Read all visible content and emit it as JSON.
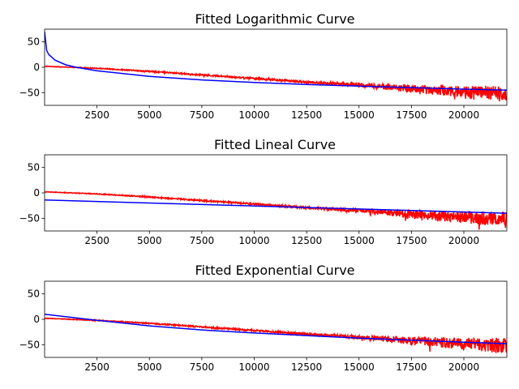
{
  "colors": {
    "observed": "#ff0000",
    "fitted": "#0000ff",
    "axes": "#000000",
    "background": "#ffffff"
  },
  "chart_data": [
    {
      "type": "line",
      "title": "Fitted Logarithmic Curve",
      "xlabel": "",
      "ylabel": "",
      "xlim": [
        1,
        22050
      ],
      "ylim": [
        -75,
        75
      ],
      "xticks": [
        2500,
        5000,
        7500,
        10000,
        12500,
        15000,
        17500,
        20000
      ],
      "yticks": [
        50,
        0,
        -50
      ],
      "grid": false,
      "legend": "none",
      "series": [
        {
          "color": "#ff0000",
          "style": "noisy",
          "x": [
            1,
            2500,
            5000,
            7500,
            10000,
            12500,
            15000,
            17500,
            20000,
            22050
          ],
          "y": [
            2,
            -2,
            -8,
            -15,
            -22,
            -29,
            -35,
            -42,
            -48,
            -52
          ],
          "noise_envelope": {
            "x": [
              1,
              12500,
              15000,
              17500,
              20000,
              22050
            ],
            "amp": [
              0.5,
              2,
              4,
              8,
              12,
              15
            ]
          }
        },
        {
          "color": "#0000ff",
          "style": "line",
          "x": [
            1,
            100,
            200,
            500,
            1000,
            1500,
            2500,
            5000,
            7500,
            10000,
            12500,
            15000,
            17500,
            20000,
            22050
          ],
          "y": [
            70,
            33,
            25,
            14,
            5,
            0,
            -7,
            -18,
            -25,
            -30,
            -34,
            -37,
            -40,
            -43,
            -45
          ]
        }
      ]
    },
    {
      "type": "line",
      "title": "Fitted Lineal Curve",
      "xlabel": "",
      "ylabel": "",
      "xlim": [
        1,
        22050
      ],
      "ylim": [
        -75,
        75
      ],
      "xticks": [
        2500,
        5000,
        7500,
        10000,
        12500,
        15000,
        17500,
        20000
      ],
      "yticks": [
        50,
        0,
        -50
      ],
      "grid": false,
      "legend": "none",
      "series": [
        {
          "color": "#ff0000",
          "style": "noisy",
          "x": [
            1,
            2500,
            5000,
            7500,
            10000,
            12500,
            15000,
            17500,
            20000,
            22050
          ],
          "y": [
            2,
            -2,
            -8,
            -15,
            -22,
            -29,
            -35,
            -42,
            -48,
            -52
          ],
          "noise_envelope": {
            "x": [
              1,
              12500,
              15000,
              17500,
              20000,
              22050
            ],
            "amp": [
              0.5,
              2,
              4,
              8,
              12,
              15
            ]
          }
        },
        {
          "color": "#0000ff",
          "style": "line",
          "x": [
            1,
            22050
          ],
          "y": [
            -14,
            -40
          ]
        }
      ]
    },
    {
      "type": "line",
      "title": "Fitted Exponential Curve",
      "xlabel": "",
      "ylabel": "",
      "xlim": [
        1,
        22050
      ],
      "ylim": [
        -75,
        75
      ],
      "xticks": [
        2500,
        5000,
        7500,
        10000,
        12500,
        15000,
        17500,
        20000
      ],
      "yticks": [
        50,
        0,
        -50
      ],
      "grid": false,
      "legend": "none",
      "series": [
        {
          "color": "#ff0000",
          "style": "noisy",
          "x": [
            1,
            2500,
            5000,
            7500,
            10000,
            12500,
            15000,
            17500,
            20000,
            22050
          ],
          "y": [
            2,
            -2,
            -8,
            -15,
            -22,
            -29,
            -35,
            -42,
            -48,
            -52
          ],
          "noise_envelope": {
            "x": [
              1,
              12500,
              15000,
              17500,
              20000,
              22050
            ],
            "amp": [
              0.5,
              2,
              4,
              8,
              12,
              15
            ]
          }
        },
        {
          "color": "#0000ff",
          "style": "line",
          "x": [
            1,
            2500,
            5000,
            7500,
            10000,
            12500,
            15000,
            17500,
            20000,
            22050
          ],
          "y": [
            10,
            -2,
            -13,
            -21,
            -27,
            -32,
            -37,
            -41,
            -45,
            -48
          ]
        }
      ]
    }
  ]
}
